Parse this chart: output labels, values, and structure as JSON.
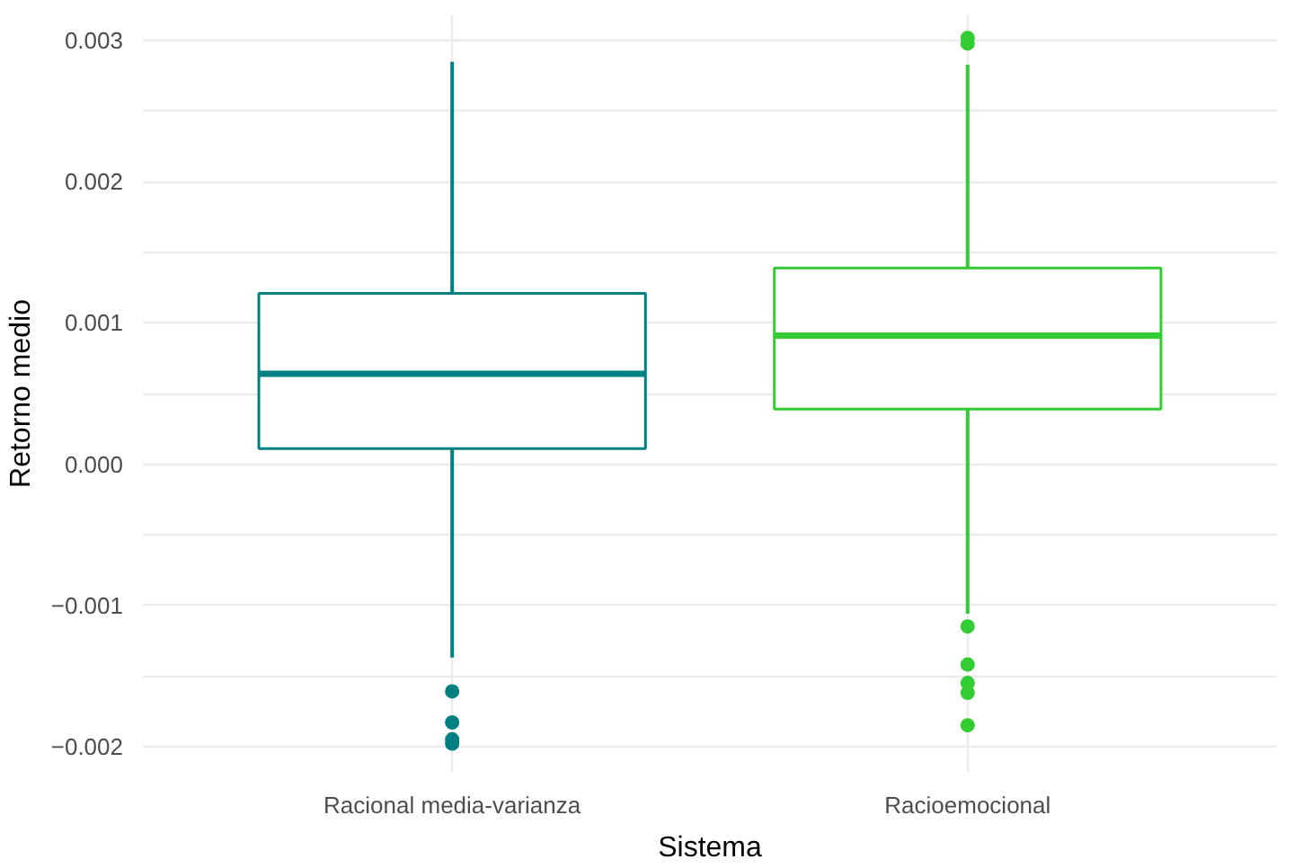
{
  "chart_data": {
    "type": "box",
    "xlabel": "Sistema",
    "ylabel": "Retorno medio",
    "categories": [
      "Racional media-varianza",
      "Racioemocional"
    ],
    "series": [
      {
        "color": "#008080",
        "boxes": [
          {
            "low": -0.00137,
            "q1": 0.00011,
            "median": 0.00064,
            "q3": 0.00121,
            "high": 0.00285,
            "outliers": [
              -0.00161,
              -0.00183,
              -0.00195,
              -0.00198
            ]
          },
          null
        ]
      },
      {
        "color": "#32cd32",
        "boxes": [
          null,
          {
            "low": -0.00106,
            "q1": 0.00039,
            "median": 0.00091,
            "q3": 0.00139,
            "high": 0.00283,
            "outliers": [
              0.00302,
              0.00298,
              -0.00115,
              -0.00142,
              -0.00155,
              -0.00162,
              -0.00185
            ]
          }
        ]
      }
    ],
    "ylim": [
      -0.00218,
      0.00318
    ],
    "yticks": [
      {
        "value": -0.002,
        "label": "−0.002"
      },
      {
        "value": -0.0015,
        "label": null
      },
      {
        "value": -0.001,
        "label": "−0.001"
      },
      {
        "value": -0.0005,
        "label": null
      },
      {
        "value": 0,
        "label": "0.000"
      },
      {
        "value": 0.0005,
        "label": null
      },
      {
        "value": 0.001,
        "label": "0.001"
      },
      {
        "value": 0.0015,
        "label": null
      },
      {
        "value": 0.002,
        "label": "0.002"
      },
      {
        "value": 0.0025,
        "label": null
      },
      {
        "value": 0.003,
        "label": "0.003"
      }
    ],
    "grid": true
  }
}
